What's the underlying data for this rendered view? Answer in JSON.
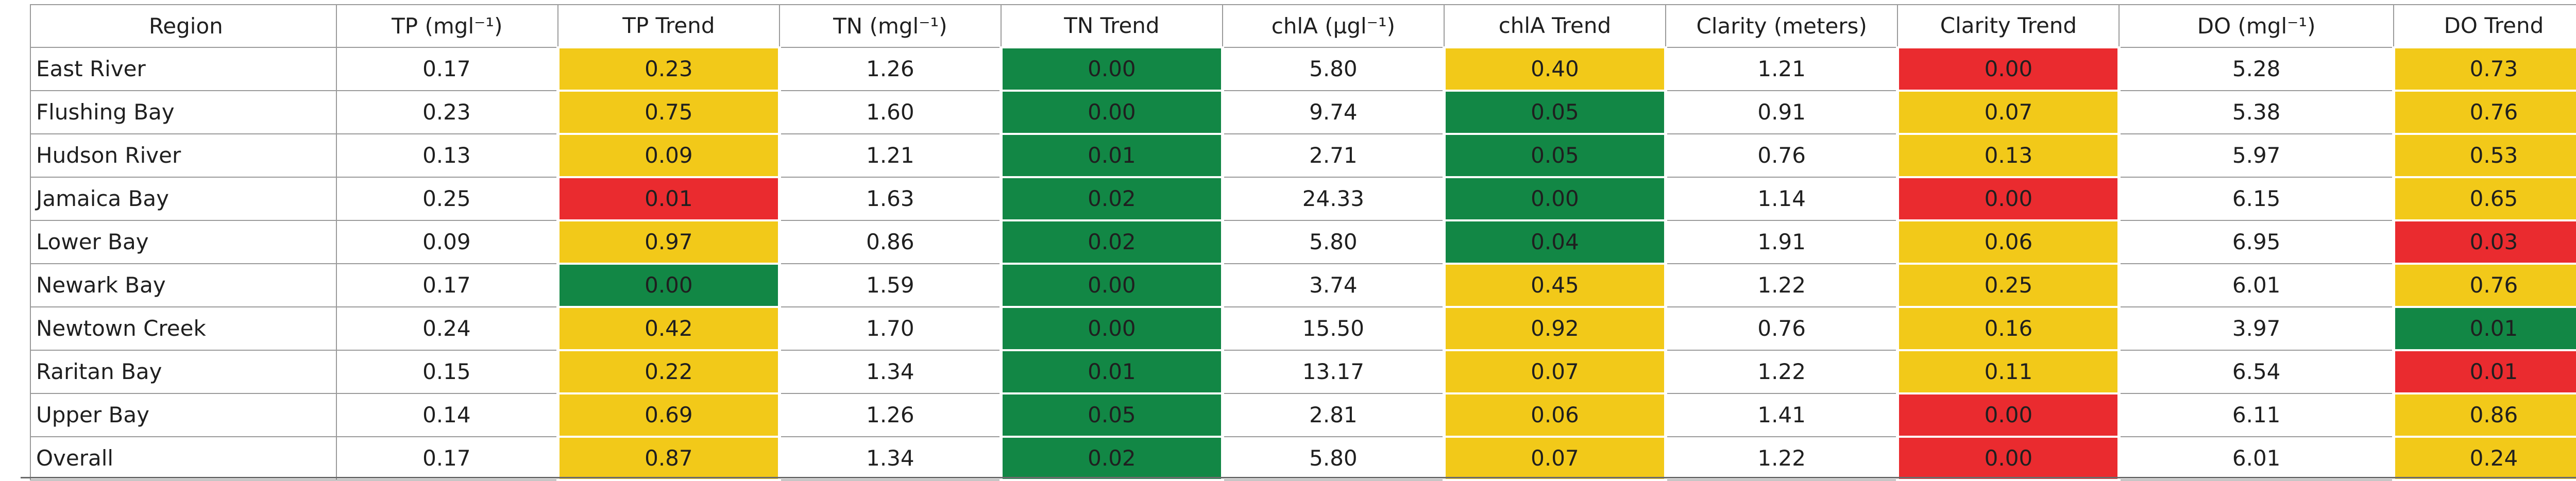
{
  "table": {
    "headers": [
      "Region",
      "TP (mgl⁻¹)",
      "TP Trend",
      "TN (mgl⁻¹)",
      "TN Trend",
      "chlA (µgl⁻¹)",
      "chlA Trend",
      "Clarity (meters)",
      "Clarity Trend",
      "DO (mgl⁻¹)",
      "DO Trend"
    ],
    "colors": {
      "yellow": "#f2c919",
      "green": "#128745",
      "red": "#ea2b2f"
    },
    "rows": [
      {
        "region": "East River",
        "tp": "0.17",
        "tp_trend": {
          "value": "0.23",
          "color": "yellow"
        },
        "tn": "1.26",
        "tn_trend": {
          "value": "0.00",
          "color": "green"
        },
        "chla": "5.80",
        "chla_trend": {
          "value": "0.40",
          "color": "yellow"
        },
        "clarity": "1.21",
        "clarity_trend": {
          "value": "0.00",
          "color": "red"
        },
        "do": "5.28",
        "do_trend": {
          "value": "0.73",
          "color": "yellow"
        }
      },
      {
        "region": "Flushing Bay",
        "tp": "0.23",
        "tp_trend": {
          "value": "0.75",
          "color": "yellow"
        },
        "tn": "1.60",
        "tn_trend": {
          "value": "0.00",
          "color": "green"
        },
        "chla": "9.74",
        "chla_trend": {
          "value": "0.05",
          "color": "green"
        },
        "clarity": "0.91",
        "clarity_trend": {
          "value": "0.07",
          "color": "yellow"
        },
        "do": "5.38",
        "do_trend": {
          "value": "0.76",
          "color": "yellow"
        }
      },
      {
        "region": "Hudson River",
        "tp": "0.13",
        "tp_trend": {
          "value": "0.09",
          "color": "yellow"
        },
        "tn": "1.21",
        "tn_trend": {
          "value": "0.01",
          "color": "green"
        },
        "chla": "2.71",
        "chla_trend": {
          "value": "0.05",
          "color": "green"
        },
        "clarity": "0.76",
        "clarity_trend": {
          "value": "0.13",
          "color": "yellow"
        },
        "do": "5.97",
        "do_trend": {
          "value": "0.53",
          "color": "yellow"
        }
      },
      {
        "region": "Jamaica Bay",
        "tp": "0.25",
        "tp_trend": {
          "value": "0.01",
          "color": "red"
        },
        "tn": "1.63",
        "tn_trend": {
          "value": "0.02",
          "color": "green"
        },
        "chla": "24.33",
        "chla_trend": {
          "value": "0.00",
          "color": "green"
        },
        "clarity": "1.14",
        "clarity_trend": {
          "value": "0.00",
          "color": "red"
        },
        "do": "6.15",
        "do_trend": {
          "value": "0.65",
          "color": "yellow"
        }
      },
      {
        "region": "Lower Bay",
        "tp": "0.09",
        "tp_trend": {
          "value": "0.97",
          "color": "yellow"
        },
        "tn": "0.86",
        "tn_trend": {
          "value": "0.02",
          "color": "green"
        },
        "chla": "5.80",
        "chla_trend": {
          "value": "0.04",
          "color": "green"
        },
        "clarity": "1.91",
        "clarity_trend": {
          "value": "0.06",
          "color": "yellow"
        },
        "do": "6.95",
        "do_trend": {
          "value": "0.03",
          "color": "red"
        }
      },
      {
        "region": "Newark Bay",
        "tp": "0.17",
        "tp_trend": {
          "value": "0.00",
          "color": "green"
        },
        "tn": "1.59",
        "tn_trend": {
          "value": "0.00",
          "color": "green"
        },
        "chla": "3.74",
        "chla_trend": {
          "value": "0.45",
          "color": "yellow"
        },
        "clarity": "1.22",
        "clarity_trend": {
          "value": "0.25",
          "color": "yellow"
        },
        "do": "6.01",
        "do_trend": {
          "value": "0.76",
          "color": "yellow"
        }
      },
      {
        "region": "Newtown Creek",
        "tp": "0.24",
        "tp_trend": {
          "value": "0.42",
          "color": "yellow"
        },
        "tn": "1.70",
        "tn_trend": {
          "value": "0.00",
          "color": "green"
        },
        "chla": "15.50",
        "chla_trend": {
          "value": "0.92",
          "color": "yellow"
        },
        "clarity": "0.76",
        "clarity_trend": {
          "value": "0.16",
          "color": "yellow"
        },
        "do": "3.97",
        "do_trend": {
          "value": "0.01",
          "color": "green"
        }
      },
      {
        "region": "Raritan Bay",
        "tp": "0.15",
        "tp_trend": {
          "value": "0.22",
          "color": "yellow"
        },
        "tn": "1.34",
        "tn_trend": {
          "value": "0.01",
          "color": "green"
        },
        "chla": "13.17",
        "chla_trend": {
          "value": "0.07",
          "color": "yellow"
        },
        "clarity": "1.22",
        "clarity_trend": {
          "value": "0.11",
          "color": "yellow"
        },
        "do": "6.54",
        "do_trend": {
          "value": "0.01",
          "color": "red"
        }
      },
      {
        "region": "Upper Bay",
        "tp": "0.14",
        "tp_trend": {
          "value": "0.69",
          "color": "yellow"
        },
        "tn": "1.26",
        "tn_trend": {
          "value": "0.05",
          "color": "green"
        },
        "chla": "2.81",
        "chla_trend": {
          "value": "0.06",
          "color": "yellow"
        },
        "clarity": "1.41",
        "clarity_trend": {
          "value": "0.00",
          "color": "red"
        },
        "do": "6.11",
        "do_trend": {
          "value": "0.86",
          "color": "yellow"
        }
      },
      {
        "region": "Overall",
        "tp": "0.17",
        "tp_trend": {
          "value": "0.87",
          "color": "yellow"
        },
        "tn": "1.34",
        "tn_trend": {
          "value": "0.02",
          "color": "green"
        },
        "chla": "5.80",
        "chla_trend": {
          "value": "0.07",
          "color": "yellow"
        },
        "clarity": "1.22",
        "clarity_trend": {
          "value": "0.00",
          "color": "red"
        },
        "do": "6.01",
        "do_trend": {
          "value": "0.24",
          "color": "yellow"
        }
      }
    ]
  }
}
